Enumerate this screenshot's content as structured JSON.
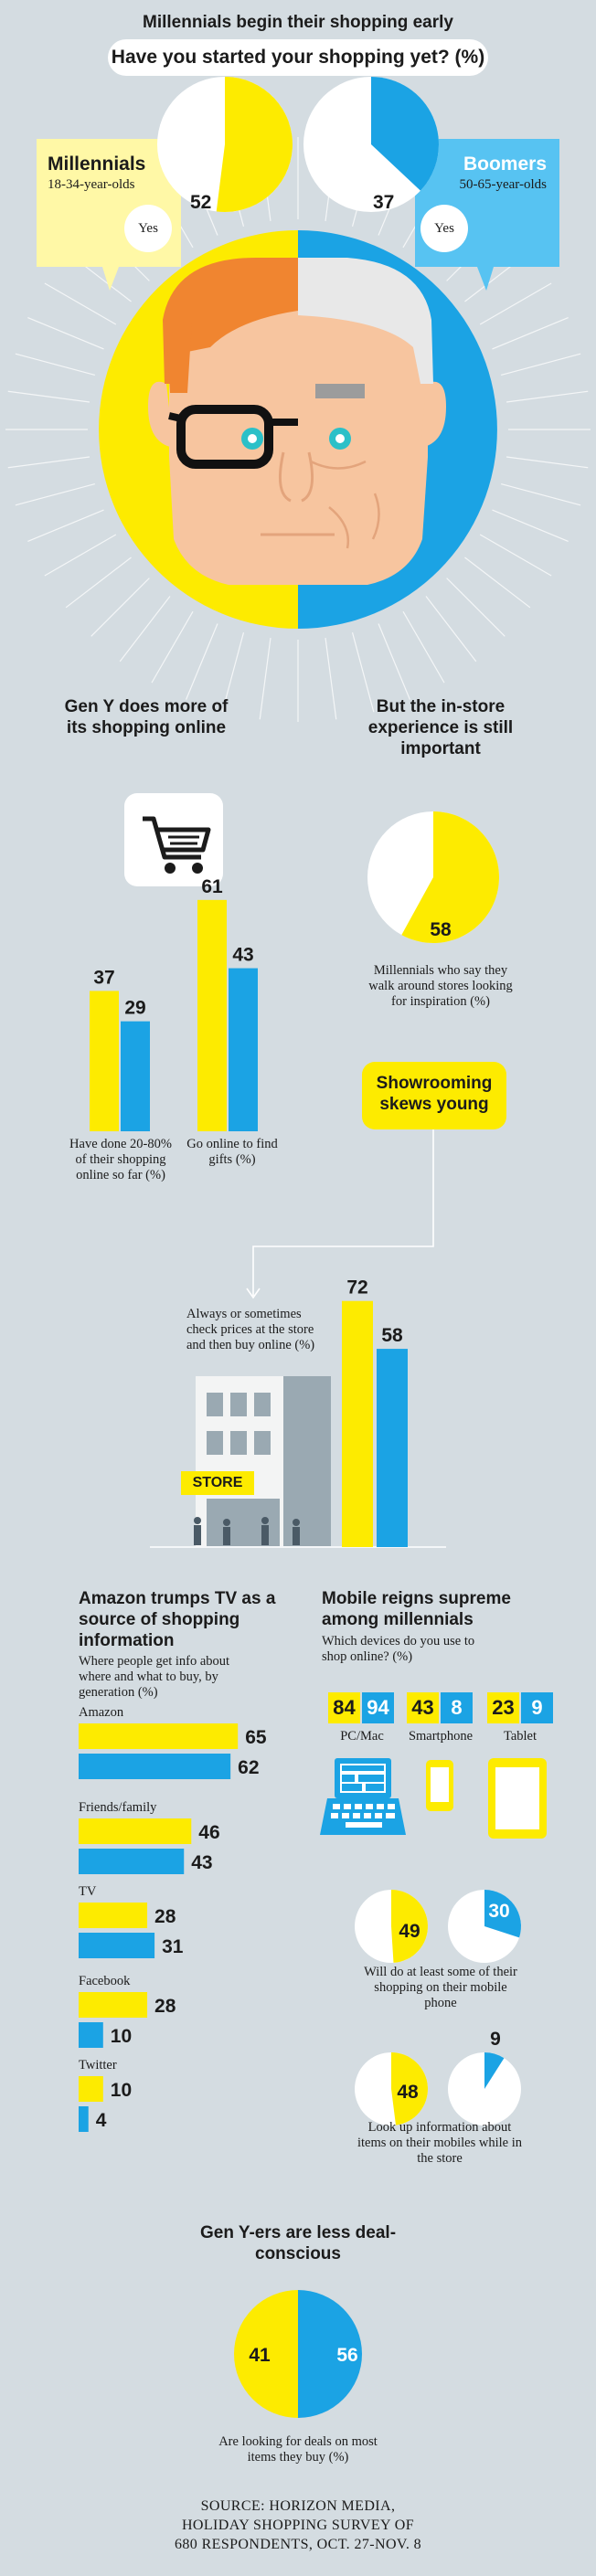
{
  "colors": {
    "yellow": "#fdeb00",
    "blue": "#1ba3e4",
    "bg": "#d4dce1",
    "ink": "#1b1b1b"
  },
  "top": {
    "title": "Millennials begin their shopping early",
    "question": "Have you started your shopping yet? (%)",
    "millennials": {
      "label": "Millennials",
      "ages": "18-34-year-olds",
      "yes": "Yes"
    },
    "boomers": {
      "label": "Boomers",
      "ages": "50-65-year-olds",
      "yes": "Yes"
    }
  },
  "online": {
    "title": "Gen Y does more of its shopping online",
    "icon": "shopping-cart-icon"
  },
  "instore": {
    "title": "But the in-store experience is still important",
    "caption": "Millennials who say they walk around stores looking for inspiration (%)"
  },
  "showroom": {
    "badge": "Showrooming skews young",
    "caption": "Always or sometimes check prices at the store and then buy online (%)",
    "store_sign": "STORE"
  },
  "amazon": {
    "title": "Amazon trumps TV as a source of shopping information",
    "subtitle": "Where people get info about where and what to buy, by generation (%)"
  },
  "mobile": {
    "title": "Mobile reigns supreme among millennials",
    "subtitle": "Which devices do you use to shop online? (%)",
    "devices": [
      {
        "label": "PC/Mac",
        "icon": "laptop-icon"
      },
      {
        "label": "Smartphone",
        "icon": "smartphone-icon"
      },
      {
        "label": "Tablet",
        "icon": "tablet-icon"
      }
    ],
    "phone_caption": "Will do at least some of their shopping on their mobile phone",
    "lookup_caption": "Look up information about items on their mobiles while in the store"
  },
  "deals": {
    "title": "Gen Y-ers are less deal-conscious",
    "caption": "Are looking for deals on most items they buy (%)"
  },
  "source": "SOURCE: HORIZON MEDIA, HOLIDAY SHOPPING SURVEY OF 680 RESPONDENTS, OCT. 27-NOV. 8",
  "chart_data": [
    {
      "type": "pie",
      "title": "Have you started your shopping yet? (%)",
      "categories": [
        "Millennials",
        "Boomers"
      ],
      "values": [
        52,
        37
      ]
    },
    {
      "type": "bar",
      "categories": [
        "Have done 20-80% of their shopping online so far (%)",
        "Go online to find gifts (%)"
      ],
      "series": [
        {
          "name": "Millennials",
          "values": [
            37,
            61
          ]
        },
        {
          "name": "Boomers",
          "values": [
            29,
            43
          ]
        }
      ]
    },
    {
      "type": "pie",
      "title": "Millennials who say they walk around stores looking for inspiration (%)",
      "values": [
        58
      ]
    },
    {
      "type": "bar",
      "title": "Always or sometimes check prices at the store and then buy online (%)",
      "categories": [
        "Millennials",
        "Boomers"
      ],
      "values": [
        72,
        58
      ]
    },
    {
      "type": "bar",
      "title": "Amazon trumps TV as a source of shopping information",
      "categories": [
        "Amazon",
        "Friends/family",
        "TV",
        "Facebook",
        "Twitter"
      ],
      "series": [
        {
          "name": "Millennials",
          "values": [
            65,
            46,
            28,
            28,
            10
          ]
        },
        {
          "name": "Boomers",
          "values": [
            62,
            43,
            31,
            10,
            4
          ]
        }
      ]
    },
    {
      "type": "table",
      "title": "Which devices do you use to shop online? (%)",
      "categories": [
        "PC/Mac",
        "Smartphone",
        "Tablet"
      ],
      "series": [
        {
          "name": "Millennials",
          "values": [
            84,
            43,
            23
          ]
        },
        {
          "name": "Boomers",
          "values": [
            94,
            8,
            9
          ]
        }
      ]
    },
    {
      "type": "pie",
      "title": "Will do at least some of their shopping on their mobile phone",
      "categories": [
        "Millennials",
        "Boomers"
      ],
      "values": [
        49,
        30
      ]
    },
    {
      "type": "pie",
      "title": "Look up information about items on their mobiles while in the store",
      "categories": [
        "Millennials",
        "Boomers"
      ],
      "values": [
        48,
        9
      ]
    },
    {
      "type": "pie",
      "title": "Are looking for deals on most items they buy (%)",
      "categories": [
        "Millennials",
        "Boomers"
      ],
      "values": [
        41,
        56
      ]
    }
  ]
}
